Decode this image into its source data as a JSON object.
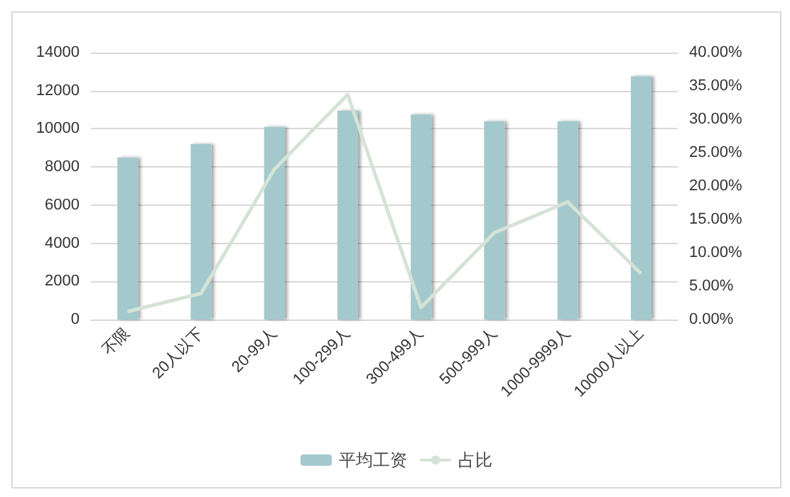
{
  "chart_data": {
    "type": "bar",
    "categories": [
      "不限",
      "20人以下",
      "20-99人",
      "100-299人",
      "300-499人",
      "500-999人",
      "1000-9999人",
      "10000人以上"
    ],
    "series": [
      {
        "name": "平均工资",
        "color": "#a3c9cd",
        "values": [
          8500,
          9200,
          10100,
          10950,
          10750,
          10400,
          10400,
          12750
        ]
      },
      {
        "name": "占比",
        "type": "line",
        "axis": "y2",
        "color": "#d5e3d6",
        "values": [
          1.2,
          3.9,
          22.5,
          33.7,
          1.8,
          13,
          17.6,
          6.9
        ]
      }
    ],
    "ylim": [
      0,
      14000
    ],
    "yticks": [
      0,
      2000,
      4000,
      6000,
      8000,
      10000,
      12000,
      14000
    ],
    "y2lim": [
      0,
      40
    ],
    "y2ticks": [
      {
        "value": 0,
        "label": "0.00%"
      },
      {
        "value": 5,
        "label": "5.00%"
      },
      {
        "value": 10,
        "label": "10.00%"
      },
      {
        "value": 15,
        "label": "15.00%"
      },
      {
        "value": 20,
        "label": "20.00%"
      },
      {
        "value": 25,
        "label": "25.00%"
      },
      {
        "value": 30,
        "label": "30.00%"
      },
      {
        "value": 35,
        "label": "35.00%"
      },
      {
        "value": 40,
        "label": "40.00%"
      }
    ],
    "grid": "y",
    "legend": "bottom",
    "marker": "none"
  }
}
